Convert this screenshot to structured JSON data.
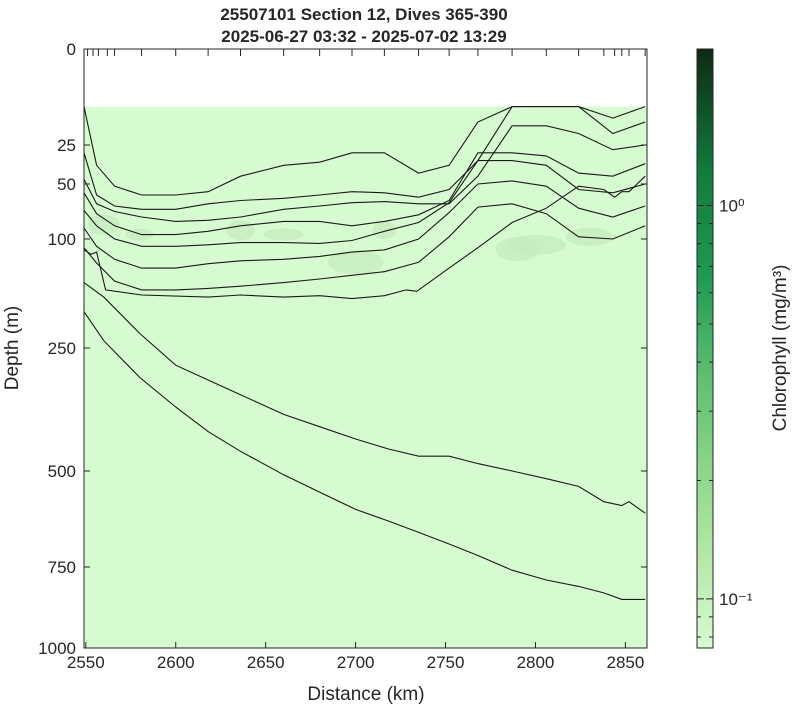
{
  "chart_data": {
    "type": "contour",
    "title": "25507101 Section 12, Dives 365-390",
    "subtitle": "2025-06-27 03:32 - 2025-07-02 13:29",
    "xlabel": "Distance (km)",
    "ylabel": "Depth (m)",
    "xlim": [
      2549,
      2862
    ],
    "y_ticks": [
      0,
      25,
      50,
      100,
      250,
      500,
      750,
      1000
    ],
    "x_ticks": [
      2550,
      2600,
      2650,
      2700,
      2750,
      2800,
      2850
    ],
    "dive_positions_km": [
      2551,
      2554,
      2557,
      2562,
      2566,
      2581,
      2600,
      2618,
      2636,
      2660,
      2680,
      2698,
      2716,
      2735,
      2752,
      2768,
      2787,
      2806,
      2824,
      2838,
      2844,
      2848,
      2852,
      2861
    ],
    "colorbar": {
      "label": "Chlorophyll (mg/m³)",
      "scale": "log",
      "range": [
        0.075,
        2.5
      ],
      "ticks": [
        0.1,
        1
      ],
      "tick_labels": [
        "10⁻¹",
        "10⁰"
      ],
      "colors": [
        "#d7fbd0",
        "#0d2b14"
      ]
    },
    "fill_color": "#d7fbd0",
    "patch_color": "#c6ecbe",
    "data_top_depth": 15,
    "contours": [
      {
        "depth": [
          15,
          38,
          52,
          60,
          60,
          57,
          45,
          38,
          36,
          30,
          30,
          43,
          38,
          19,
          15,
          15,
          15,
          18,
          15
        ]
      },
      {
        "depth": [
          30,
          60,
          70,
          73,
          73,
          68,
          65,
          63,
          60,
          57,
          58,
          62,
          55,
          35,
          15,
          15,
          15,
          22,
          19
        ]
      },
      {
        "depth": [
          47,
          68,
          75,
          80,
          84,
          83,
          80,
          73,
          70,
          67,
          66,
          68,
          68,
          45,
          20,
          20,
          22,
          28,
          25
        ]
      },
      {
        "depth": [
          58,
          77,
          88,
          96,
          96,
          93,
          88,
          84,
          84,
          88,
          84,
          78,
          65,
          30,
          30,
          32,
          43,
          45,
          37
        ]
      },
      {
        "depth": [
          74,
          88,
          100,
          110,
          110,
          108,
          105,
          105,
          106,
          102,
          93,
          85,
          67,
          35,
          35,
          38,
          55,
          58,
          50
        ]
      },
      {
        "depth": [
          90,
          110,
          128,
          140,
          140,
          134,
          130,
          128,
          124,
          118,
          115,
          100,
          76,
          50,
          48,
          52,
          72,
          80,
          70
        ]
      },
      {
        "depth": [
          112,
          133,
          158,
          170,
          170,
          168,
          165,
          160,
          155,
          150,
          145,
          132,
          98,
          71,
          68,
          77,
          98,
          100,
          88
        ]
      }
    ],
    "deep_contours": [
      {
        "points": [
          [
            2549,
            115
          ],
          [
            2553,
            121
          ],
          [
            2556,
            118
          ],
          [
            2561,
            170
          ],
          [
            2581,
            177
          ],
          [
            2618,
            180
          ],
          [
            2636,
            177
          ],
          [
            2660,
            180
          ],
          [
            2680,
            178
          ],
          [
            2698,
            182
          ],
          [
            2716,
            178
          ],
          [
            2728,
            170
          ],
          [
            2734,
            172
          ],
          [
            2752,
            140
          ],
          [
            2768,
            112
          ],
          [
            2787,
            85
          ],
          [
            2806,
            72
          ],
          [
            2824,
            52
          ],
          [
            2838,
            55
          ],
          [
            2844,
            62
          ],
          [
            2848,
            57
          ],
          [
            2852,
            57
          ],
          [
            2861,
            45
          ]
        ]
      },
      {
        "points": [
          [
            2549,
            160
          ],
          [
            2560,
            180
          ],
          [
            2580,
            230
          ],
          [
            2600,
            285
          ],
          [
            2618,
            315
          ],
          [
            2636,
            345
          ],
          [
            2660,
            385
          ],
          [
            2680,
            410
          ],
          [
            2700,
            435
          ],
          [
            2718,
            455
          ],
          [
            2735,
            470
          ],
          [
            2752,
            470
          ],
          [
            2768,
            485
          ],
          [
            2787,
            500
          ],
          [
            2806,
            520
          ],
          [
            2824,
            540
          ],
          [
            2838,
            580
          ],
          [
            2848,
            590
          ],
          [
            2852,
            580
          ],
          [
            2861,
            610
          ]
        ]
      },
      {
        "points": [
          [
            2549,
            200
          ],
          [
            2560,
            240
          ],
          [
            2580,
            310
          ],
          [
            2600,
            370
          ],
          [
            2618,
            420
          ],
          [
            2636,
            460
          ],
          [
            2660,
            510
          ],
          [
            2680,
            555
          ],
          [
            2700,
            600
          ],
          [
            2718,
            630
          ],
          [
            2735,
            660
          ],
          [
            2752,
            690
          ],
          [
            2768,
            720
          ],
          [
            2787,
            760
          ],
          [
            2806,
            790
          ],
          [
            2824,
            810
          ],
          [
            2838,
            830
          ],
          [
            2848,
            850
          ],
          [
            2861,
            850
          ]
        ]
      }
    ]
  }
}
